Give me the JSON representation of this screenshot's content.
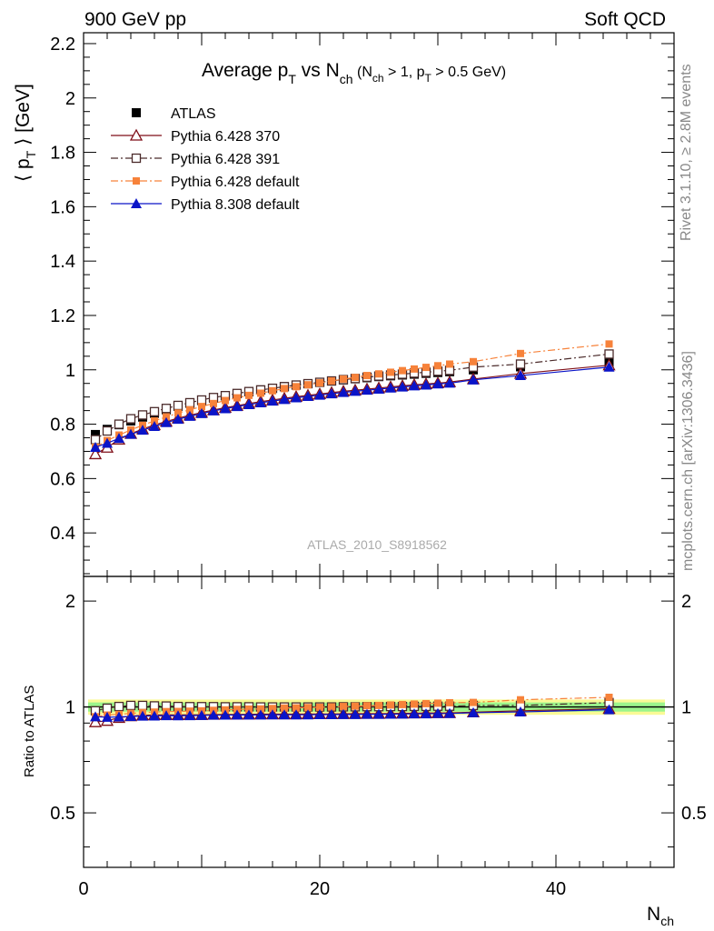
{
  "header": {
    "left": "900 GeV pp",
    "right": "Soft QCD"
  },
  "side_labels": {
    "top": "Rivet 3.1.10, ≥ 2.8M events",
    "bottom": "mcplots.cern.ch [arXiv:1306.3436]"
  },
  "watermark": "ATLAS_2010_S8918562",
  "colors": {
    "atlas": "#000000",
    "py370": "#7f0f18",
    "py391": "#4b2b2b",
    "py6def": "#f7823a",
    "py8def": "#0a14c8",
    "band_green": "#9cf58c",
    "band_yellow": "#fafa96"
  },
  "chart_data": [
    {
      "type": "scatter",
      "title": {
        "main": "Average p",
        "sub1": "T",
        "mid": " vs N",
        "sub2": "ch",
        "tail_a": " (N",
        "tail_sub1": "ch",
        "tail_b": " > 1, p",
        "tail_sub2": "T",
        "tail_c": " > 0.5 GeV)"
      },
      "ylabel": {
        "a": "⟨ p",
        "sub": "T",
        "b": " ⟩  [GeV]"
      },
      "xlim": [
        0,
        50
      ],
      "ylim": [
        0.24,
        2.24
      ],
      "yticks": [
        0.4,
        0.6,
        0.8,
        1.0,
        1.2,
        1.4,
        1.6,
        1.8,
        2.0,
        2.2
      ],
      "ytick_labels": [
        "0.4",
        "0.6",
        "0.8",
        "1",
        "1.2",
        "1.4",
        "1.6",
        "1.8",
        "2",
        "2.2"
      ],
      "x": [
        1,
        2,
        3,
        4,
        5,
        6,
        7,
        8,
        9,
        10,
        11,
        12,
        13,
        14,
        15,
        16,
        17,
        18,
        19,
        20,
        21,
        22,
        23,
        24,
        25,
        26,
        27,
        28,
        29,
        30,
        31,
        33,
        37,
        44.5
      ],
      "series": [
        {
          "name": "ATLAS",
          "key": "atlas",
          "marker": "square-filled",
          "line": "none",
          "values": [
            0.762,
            0.781,
            0.798,
            0.812,
            0.826,
            0.84,
            0.853,
            0.866,
            0.877,
            0.887,
            0.896,
            0.904,
            0.912,
            0.919,
            0.926,
            0.932,
            0.938,
            0.944,
            0.949,
            0.954,
            0.959,
            0.963,
            0.967,
            0.971,
            0.975,
            0.978,
            0.981,
            0.984,
            0.987,
            0.99,
            0.993,
            1.0,
            1.011,
            1.028
          ]
        },
        {
          "name": "Pythia 6.428 370",
          "key": "py370",
          "marker": "triangle-open",
          "line": "solid",
          "values": [
            0.69,
            0.714,
            0.744,
            0.765,
            0.782,
            0.797,
            0.81,
            0.822,
            0.833,
            0.843,
            0.852,
            0.861,
            0.868,
            0.876,
            0.883,
            0.889,
            0.895,
            0.901,
            0.906,
            0.911,
            0.916,
            0.921,
            0.925,
            0.929,
            0.933,
            0.937,
            0.941,
            0.945,
            0.948,
            0.951,
            0.955,
            0.966,
            0.986,
            1.017
          ]
        },
        {
          "name": "Pythia 6.428 391",
          "key": "py391",
          "marker": "square-open",
          "line": "dashdot",
          "values": [
            0.743,
            0.775,
            0.8,
            0.82,
            0.834,
            0.846,
            0.858,
            0.869,
            0.879,
            0.889,
            0.898,
            0.905,
            0.913,
            0.92,
            0.926,
            0.932,
            0.938,
            0.944,
            0.949,
            0.954,
            0.959,
            0.964,
            0.968,
            0.973,
            0.977,
            0.981,
            0.984,
            0.988,
            0.991,
            0.995,
            0.998,
            1.01,
            1.021,
            1.058
          ]
        },
        {
          "name": "Pythia 6.428 default",
          "key": "py6def",
          "marker": "square-filled-small",
          "line": "dashdot",
          "values": [
            0.715,
            0.74,
            0.76,
            0.779,
            0.796,
            0.812,
            0.827,
            0.841,
            0.853,
            0.865,
            0.876,
            0.887,
            0.897,
            0.906,
            0.914,
            0.923,
            0.931,
            0.938,
            0.945,
            0.952,
            0.959,
            0.966,
            0.972,
            0.979,
            0.985,
            0.991,
            0.997,
            1.003,
            1.009,
            1.015,
            1.021,
            1.03,
            1.06,
            1.095
          ]
        },
        {
          "name": "Pythia 8.308 default",
          "key": "py8def",
          "marker": "triangle-filled",
          "line": "solid",
          "values": [
            0.715,
            0.73,
            0.748,
            0.763,
            0.778,
            0.792,
            0.806,
            0.818,
            0.829,
            0.839,
            0.849,
            0.857,
            0.865,
            0.872,
            0.879,
            0.885,
            0.891,
            0.897,
            0.902,
            0.907,
            0.912,
            0.917,
            0.921,
            0.925,
            0.929,
            0.933,
            0.937,
            0.941,
            0.944,
            0.948,
            0.951,
            0.963,
            0.979,
            1.01
          ]
        }
      ]
    },
    {
      "type": "scatter",
      "ylabel": "Ratio to ATLAS",
      "xlabel": {
        "a": "N",
        "sub": "ch"
      },
      "xlim": [
        0,
        50
      ],
      "ylim": [
        0.35,
        2.35
      ],
      "log_y": true,
      "xticks": [
        0,
        20,
        40
      ],
      "xtick_labels": [
        "0",
        "20",
        "40"
      ],
      "yticks": [
        0.5,
        1,
        2
      ],
      "ytick_labels": [
        "0.5",
        "1",
        "2"
      ],
      "band_green": [
        0.97,
        1.03
      ],
      "band_yellow": [
        0.95,
        1.05
      ],
      "ratios": {
        "py370": [
          0.906,
          0.914,
          0.932,
          0.942,
          0.947,
          0.949,
          0.95,
          0.949,
          0.95,
          0.95,
          0.951,
          0.952,
          0.952,
          0.953,
          0.954,
          0.954,
          0.954,
          0.954,
          0.955,
          0.955,
          0.955,
          0.956,
          0.957,
          0.957,
          0.957,
          0.958,
          0.959,
          0.96,
          0.961,
          0.961,
          0.962,
          0.966,
          0.975,
          0.989
        ],
        "py391": [
          0.975,
          0.992,
          1.003,
          1.01,
          1.01,
          1.007,
          1.006,
          1.003,
          1.002,
          1.002,
          1.002,
          1.001,
          1.001,
          1.001,
          1.0,
          1.0,
          1.0,
          1.0,
          1.0,
          1.0,
          1.0,
          1.001,
          1.001,
          1.002,
          1.002,
          1.003,
          1.003,
          1.004,
          1.004,
          1.005,
          1.005,
          1.01,
          1.01,
          1.029
        ],
        "py6def": [
          0.938,
          0.948,
          0.952,
          0.959,
          0.964,
          0.967,
          0.97,
          0.971,
          0.973,
          0.975,
          0.978,
          0.981,
          0.984,
          0.986,
          0.987,
          0.99,
          0.993,
          0.994,
          0.996,
          0.998,
          1.0,
          1.003,
          1.005,
          1.008,
          1.01,
          1.013,
          1.016,
          1.019,
          1.022,
          1.025,
          1.028,
          1.03,
          1.048,
          1.065
        ],
        "py8def": [
          0.938,
          0.935,
          0.937,
          0.94,
          0.942,
          0.943,
          0.945,
          0.944,
          0.945,
          0.946,
          0.948,
          0.948,
          0.949,
          0.949,
          0.949,
          0.95,
          0.95,
          0.95,
          0.95,
          0.951,
          0.951,
          0.952,
          0.952,
          0.953,
          0.953,
          0.954,
          0.955,
          0.956,
          0.956,
          0.958,
          0.958,
          0.963,
          0.968,
          0.982
        ]
      }
    }
  ]
}
